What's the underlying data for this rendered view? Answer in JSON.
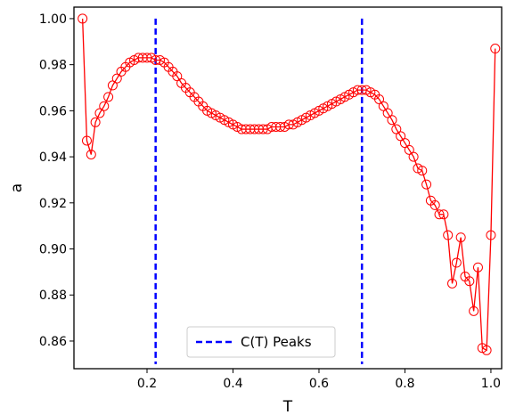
{
  "chart_data": {
    "type": "line",
    "xlabel": "T",
    "ylabel": "a",
    "xlim": [
      0.03,
      1.025
    ],
    "ylim": [
      0.848,
      1.005
    ],
    "xticks": [
      0.2,
      0.4,
      0.6,
      0.8,
      1.0
    ],
    "xtick_labels": [
      "0.2",
      "0.4",
      "0.6",
      "0.8",
      "1.0"
    ],
    "yticks": [
      0.86,
      0.88,
      0.9,
      0.92,
      0.94,
      0.96,
      0.98,
      1.0
    ],
    "ytick_labels": [
      "0.86",
      "0.88",
      "0.90",
      "0.92",
      "0.94",
      "0.96",
      "0.98",
      "1.00"
    ],
    "grid": false,
    "legend_position": "bottom-center",
    "colors": {
      "series": "#ff0000",
      "peaks": "#0000ff"
    },
    "series": [
      {
        "style": "line-with-open-circles",
        "color": "#ff0000",
        "points": [
          [
            0.05,
            1.0
          ],
          [
            0.06,
            0.947
          ],
          [
            0.07,
            0.941
          ],
          [
            0.08,
            0.955
          ],
          [
            0.09,
            0.959
          ],
          [
            0.1,
            0.962
          ],
          [
            0.11,
            0.966
          ],
          [
            0.12,
            0.971
          ],
          [
            0.13,
            0.974
          ],
          [
            0.14,
            0.977
          ],
          [
            0.15,
            0.979
          ],
          [
            0.16,
            0.981
          ],
          [
            0.17,
            0.982
          ],
          [
            0.18,
            0.983
          ],
          [
            0.19,
            0.983
          ],
          [
            0.2,
            0.983
          ],
          [
            0.21,
            0.983
          ],
          [
            0.22,
            0.982
          ],
          [
            0.23,
            0.982
          ],
          [
            0.24,
            0.981
          ],
          [
            0.25,
            0.979
          ],
          [
            0.26,
            0.977
          ],
          [
            0.27,
            0.975
          ],
          [
            0.28,
            0.972
          ],
          [
            0.29,
            0.97
          ],
          [
            0.3,
            0.968
          ],
          [
            0.31,
            0.966
          ],
          [
            0.32,
            0.964
          ],
          [
            0.33,
            0.962
          ],
          [
            0.34,
            0.96
          ],
          [
            0.35,
            0.959
          ],
          [
            0.36,
            0.958
          ],
          [
            0.37,
            0.957
          ],
          [
            0.38,
            0.956
          ],
          [
            0.39,
            0.955
          ],
          [
            0.4,
            0.954
          ],
          [
            0.41,
            0.953
          ],
          [
            0.42,
            0.952
          ],
          [
            0.43,
            0.952
          ],
          [
            0.44,
            0.952
          ],
          [
            0.45,
            0.952
          ],
          [
            0.46,
            0.952
          ],
          [
            0.47,
            0.952
          ],
          [
            0.48,
            0.952
          ],
          [
            0.49,
            0.953
          ],
          [
            0.5,
            0.953
          ],
          [
            0.51,
            0.953
          ],
          [
            0.52,
            0.953
          ],
          [
            0.53,
            0.954
          ],
          [
            0.54,
            0.954
          ],
          [
            0.55,
            0.955
          ],
          [
            0.56,
            0.956
          ],
          [
            0.57,
            0.957
          ],
          [
            0.58,
            0.958
          ],
          [
            0.59,
            0.959
          ],
          [
            0.6,
            0.96
          ],
          [
            0.61,
            0.961
          ],
          [
            0.62,
            0.962
          ],
          [
            0.63,
            0.963
          ],
          [
            0.64,
            0.964
          ],
          [
            0.65,
            0.965
          ],
          [
            0.66,
            0.966
          ],
          [
            0.67,
            0.967
          ],
          [
            0.68,
            0.968
          ],
          [
            0.69,
            0.969
          ],
          [
            0.7,
            0.969
          ],
          [
            0.71,
            0.969
          ],
          [
            0.72,
            0.968
          ],
          [
            0.73,
            0.967
          ],
          [
            0.74,
            0.965
          ],
          [
            0.75,
            0.962
          ],
          [
            0.76,
            0.959
          ],
          [
            0.77,
            0.956
          ],
          [
            0.78,
            0.952
          ],
          [
            0.79,
            0.949
          ],
          [
            0.8,
            0.946
          ],
          [
            0.81,
            0.943
          ],
          [
            0.82,
            0.94
          ],
          [
            0.83,
            0.935
          ],
          [
            0.84,
            0.934
          ],
          [
            0.85,
            0.928
          ],
          [
            0.86,
            0.921
          ],
          [
            0.87,
            0.919
          ],
          [
            0.88,
            0.915
          ],
          [
            0.89,
            0.915
          ],
          [
            0.9,
            0.906
          ],
          [
            0.91,
            0.885
          ],
          [
            0.92,
            0.894
          ],
          [
            0.93,
            0.905
          ],
          [
            0.94,
            0.888
          ],
          [
            0.95,
            0.886
          ],
          [
            0.96,
            0.873
          ],
          [
            0.97,
            0.892
          ],
          [
            0.98,
            0.857
          ],
          [
            0.99,
            0.856
          ],
          [
            1.0,
            0.906
          ],
          [
            1.01,
            0.987
          ]
        ]
      }
    ],
    "peaks": {
      "name": "C(T) Peaks",
      "style": "dashed-vertical",
      "color": "#0000ff",
      "x": [
        0.22,
        0.7
      ],
      "y_range": [
        0.85,
        1.0
      ]
    }
  }
}
